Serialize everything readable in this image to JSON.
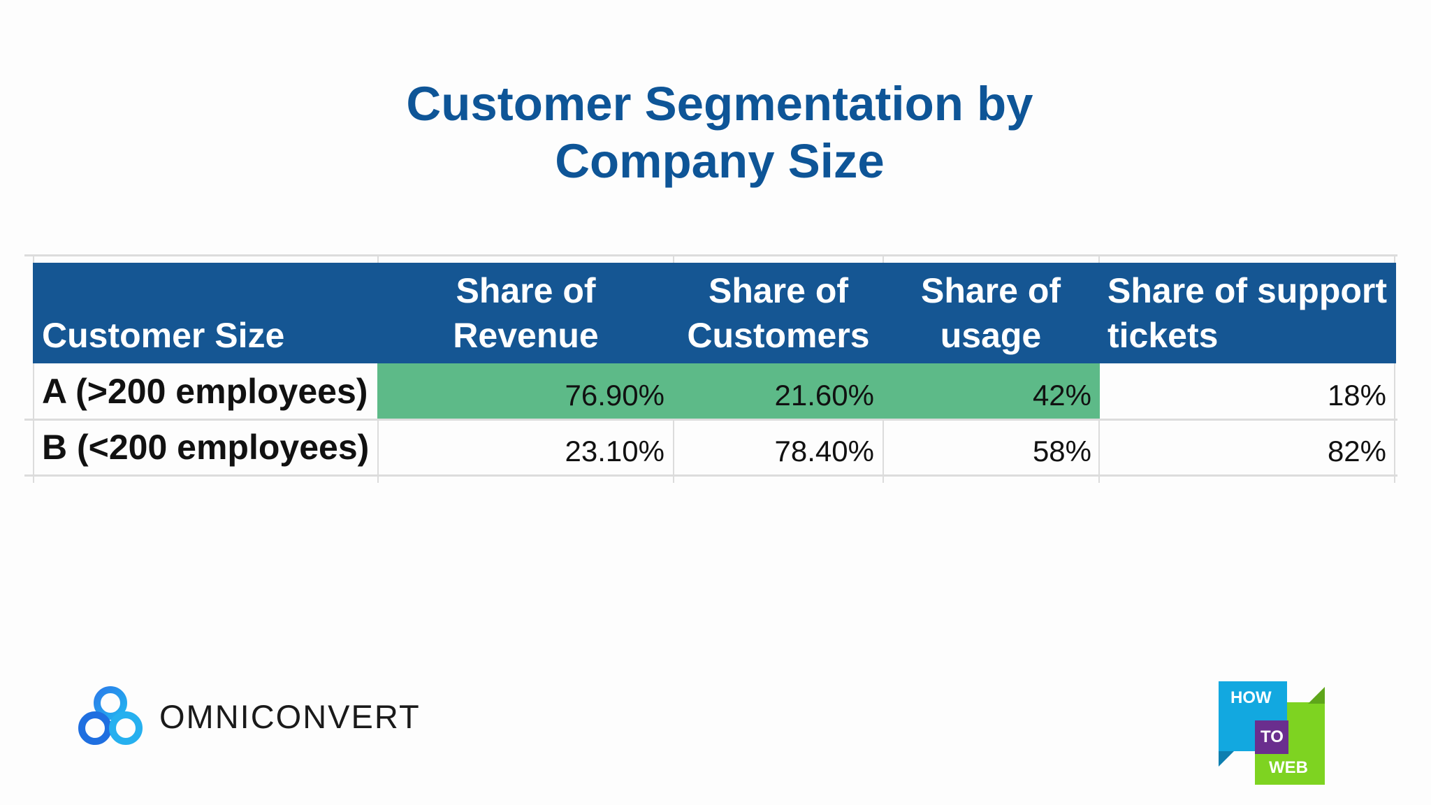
{
  "title_lines": [
    "Customer Segmentation by",
    "Company Size"
  ],
  "colors": {
    "title": "#0e5597",
    "header_bg": "#155693",
    "highlight": "#5dba88"
  },
  "chart_data": {
    "type": "table",
    "columns": [
      "Customer Size",
      "Share of Revenue",
      "Share of Customers",
      "Share of usage",
      "Share of support tickets"
    ],
    "header_lines": [
      [
        "Customer Size"
      ],
      [
        "Share of",
        "Revenue"
      ],
      [
        "Share of",
        "Customers"
      ],
      [
        "Share of",
        "usage"
      ],
      [
        "Share of support",
        "tickets"
      ]
    ],
    "rows": [
      {
        "label": "A (>200 employees)",
        "values": [
          "76.90%",
          "21.60%",
          "42%",
          "18%"
        ],
        "highlighted": [
          true,
          true,
          true,
          false
        ]
      },
      {
        "label": "B (<200 employees)",
        "values": [
          "23.10%",
          "78.40%",
          "58%",
          "82%"
        ],
        "highlighted": [
          false,
          false,
          false,
          false
        ]
      }
    ]
  },
  "logos": {
    "omniconvert": {
      "text": "OMNICONVERT",
      "icon": "three-circles-icon"
    },
    "how_to_web": {
      "lines": [
        "HOW",
        "TO",
        "WEB"
      ],
      "colors": [
        "#12a8e0",
        "#6a2e8e",
        "#7ed321"
      ]
    }
  }
}
